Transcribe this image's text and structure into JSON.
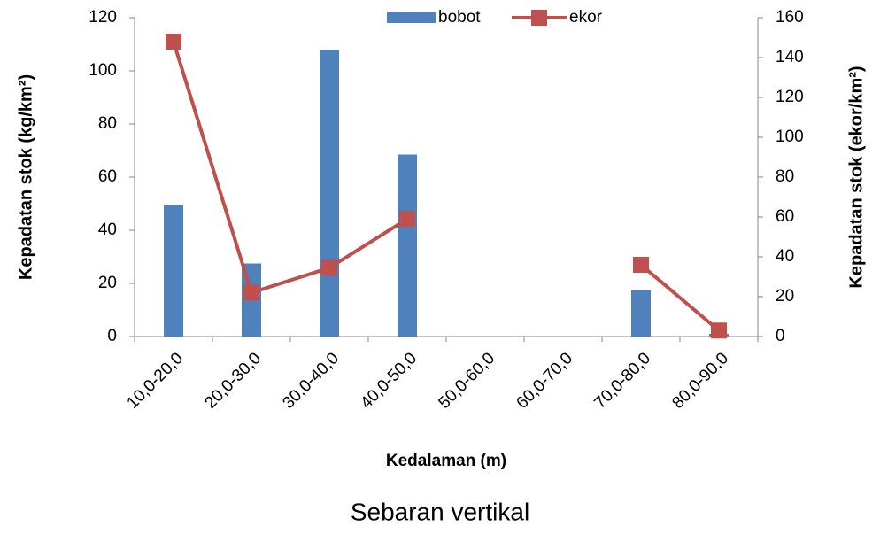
{
  "chart_data": {
    "type": "bar_line",
    "title": "Sebaran vertikal",
    "xlabel": "Kedalaman (m)",
    "ylabel": "Kepadatan stok (kg/km²)",
    "y2label": "Kepadatan stok (ekor/km²)",
    "categories": [
      "10,0-20,0",
      "20,0-30,0",
      "30,0-40,0",
      "40,0-50,0",
      "50,0-60,0",
      "60,0-70,0",
      "70,0-80,0",
      "80,0-90,0"
    ],
    "series": [
      {
        "name": "bobot",
        "type": "bar",
        "color": "#4f81bd",
        "values": [
          49.5,
          27.5,
          108,
          68.5,
          null,
          null,
          17.5,
          1
        ]
      },
      {
        "name": "ekor",
        "type": "line",
        "axis": "y2",
        "color": "#c0504d",
        "values": [
          148,
          22,
          34.5,
          59,
          null,
          null,
          36,
          3
        ]
      }
    ],
    "ylim": [
      0,
      120
    ],
    "yticks": [
      0,
      20,
      40,
      60,
      80,
      100,
      120
    ],
    "y2lim": [
      0,
      160
    ],
    "y2ticks": [
      0,
      20,
      40,
      60,
      80,
      100,
      120,
      140,
      160
    ],
    "legend": "top"
  }
}
